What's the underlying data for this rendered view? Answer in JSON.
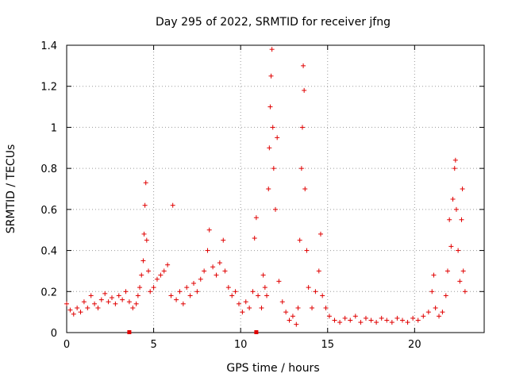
{
  "chart_data": {
    "type": "scatter",
    "title": "Day 295 of 2022, SRMTID for receiver jfng",
    "xlabel": "GPS time / hours",
    "ylabel": "SRMTID / TECUs",
    "xlim": [
      0,
      24
    ],
    "ylim": [
      0,
      1.4
    ],
    "xticks": [
      "0",
      "5",
      "10",
      "15",
      "20"
    ],
    "yticks": [
      "0",
      "0.2",
      "0.4",
      "0.6",
      "0.8",
      "1",
      "1.2",
      "1.4"
    ],
    "grid": true,
    "marker": "+",
    "series": [
      {
        "name": "SRMTID",
        "color": "#e00000",
        "points": [
          [
            0.0,
            0.14
          ],
          [
            0.2,
            0.11
          ],
          [
            0.4,
            0.09
          ],
          [
            0.6,
            0.12
          ],
          [
            0.8,
            0.1
          ],
          [
            1.0,
            0.15
          ],
          [
            1.2,
            0.12
          ],
          [
            1.4,
            0.18
          ],
          [
            1.6,
            0.14
          ],
          [
            1.8,
            0.12
          ],
          [
            2.0,
            0.16
          ],
          [
            2.2,
            0.19
          ],
          [
            2.4,
            0.15
          ],
          [
            2.6,
            0.17
          ],
          [
            2.8,
            0.14
          ],
          [
            3.0,
            0.18
          ],
          [
            3.2,
            0.16
          ],
          [
            3.4,
            0.2
          ],
          [
            3.6,
            0.15
          ],
          [
            3.8,
            0.12
          ],
          [
            4.0,
            0.14
          ],
          [
            4.1,
            0.18
          ],
          [
            4.2,
            0.22
          ],
          [
            4.3,
            0.28
          ],
          [
            4.4,
            0.35
          ],
          [
            4.45,
            0.48
          ],
          [
            4.5,
            0.62
          ],
          [
            4.55,
            0.73
          ],
          [
            4.6,
            0.45
          ],
          [
            4.7,
            0.3
          ],
          [
            4.8,
            0.2
          ],
          [
            5.0,
            0.22
          ],
          [
            5.2,
            0.26
          ],
          [
            5.4,
            0.28
          ],
          [
            5.6,
            0.3
          ],
          [
            5.8,
            0.33
          ],
          [
            6.0,
            0.18
          ],
          [
            6.1,
            0.62
          ],
          [
            6.3,
            0.16
          ],
          [
            6.5,
            0.2
          ],
          [
            6.7,
            0.14
          ],
          [
            6.9,
            0.22
          ],
          [
            7.1,
            0.18
          ],
          [
            7.3,
            0.24
          ],
          [
            7.5,
            0.2
          ],
          [
            7.7,
            0.26
          ],
          [
            7.9,
            0.3
          ],
          [
            8.1,
            0.4
          ],
          [
            8.2,
            0.5
          ],
          [
            8.4,
            0.32
          ],
          [
            8.6,
            0.28
          ],
          [
            8.8,
            0.34
          ],
          [
            9.0,
            0.45
          ],
          [
            9.1,
            0.3
          ],
          [
            9.3,
            0.22
          ],
          [
            9.5,
            0.18
          ],
          [
            9.7,
            0.2
          ],
          [
            9.9,
            0.14
          ],
          [
            10.1,
            0.1
          ],
          [
            10.3,
            0.15
          ],
          [
            10.5,
            0.12
          ],
          [
            10.7,
            0.2
          ],
          [
            10.8,
            0.46
          ],
          [
            10.9,
            0.56
          ],
          [
            11.0,
            0.18
          ],
          [
            11.2,
            0.12
          ],
          [
            11.3,
            0.28
          ],
          [
            11.4,
            0.22
          ],
          [
            11.5,
            0.18
          ],
          [
            11.6,
            0.7
          ],
          [
            11.65,
            0.9
          ],
          [
            11.7,
            1.1
          ],
          [
            11.75,
            1.25
          ],
          [
            11.8,
            1.38
          ],
          [
            11.85,
            1.0
          ],
          [
            11.9,
            0.8
          ],
          [
            12.0,
            0.6
          ],
          [
            12.1,
            0.95
          ],
          [
            12.2,
            0.25
          ],
          [
            12.4,
            0.15
          ],
          [
            12.6,
            0.1
          ],
          [
            12.8,
            0.06
          ],
          [
            13.0,
            0.08
          ],
          [
            13.2,
            0.04
          ],
          [
            13.3,
            0.12
          ],
          [
            13.4,
            0.45
          ],
          [
            13.5,
            0.8
          ],
          [
            13.55,
            1.0
          ],
          [
            13.6,
            1.3
          ],
          [
            13.65,
            1.18
          ],
          [
            13.7,
            0.7
          ],
          [
            13.8,
            0.4
          ],
          [
            13.9,
            0.22
          ],
          [
            14.1,
            0.12
          ],
          [
            14.3,
            0.2
          ],
          [
            14.5,
            0.3
          ],
          [
            14.6,
            0.48
          ],
          [
            14.7,
            0.18
          ],
          [
            14.9,
            0.12
          ],
          [
            15.1,
            0.08
          ],
          [
            15.4,
            0.06
          ],
          [
            15.7,
            0.05
          ],
          [
            16.0,
            0.07
          ],
          [
            16.3,
            0.06
          ],
          [
            16.6,
            0.08
          ],
          [
            16.9,
            0.05
          ],
          [
            17.2,
            0.07
          ],
          [
            17.5,
            0.06
          ],
          [
            17.8,
            0.05
          ],
          [
            18.1,
            0.07
          ],
          [
            18.4,
            0.06
          ],
          [
            18.7,
            0.05
          ],
          [
            19.0,
            0.07
          ],
          [
            19.3,
            0.06
          ],
          [
            19.6,
            0.05
          ],
          [
            19.9,
            0.07
          ],
          [
            20.2,
            0.06
          ],
          [
            20.5,
            0.08
          ],
          [
            20.8,
            0.1
          ],
          [
            21.0,
            0.2
          ],
          [
            21.1,
            0.28
          ],
          [
            21.2,
            0.12
          ],
          [
            21.4,
            0.08
          ],
          [
            21.6,
            0.1
          ],
          [
            21.8,
            0.18
          ],
          [
            21.9,
            0.3
          ],
          [
            22.0,
            0.55
          ],
          [
            22.1,
            0.42
          ],
          [
            22.2,
            0.65
          ],
          [
            22.3,
            0.8
          ],
          [
            22.35,
            0.84
          ],
          [
            22.4,
            0.6
          ],
          [
            22.5,
            0.4
          ],
          [
            22.6,
            0.25
          ],
          [
            22.7,
            0.55
          ],
          [
            22.75,
            0.7
          ],
          [
            22.8,
            0.3
          ],
          [
            22.9,
            0.2
          ]
        ],
        "ground_markers": [
          3.6,
          10.9
        ]
      }
    ]
  }
}
